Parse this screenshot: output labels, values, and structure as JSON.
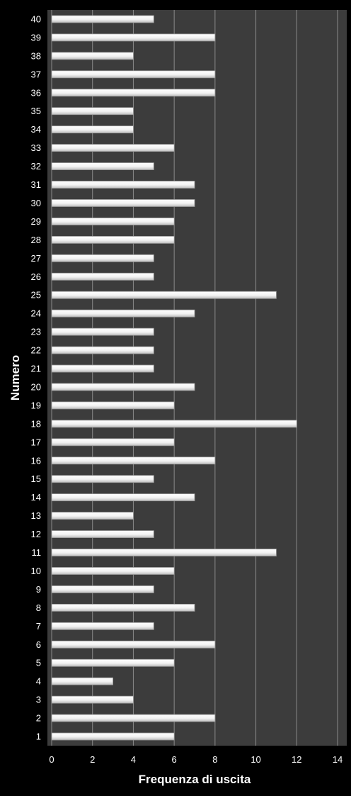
{
  "colors": {
    "background": "#000000",
    "plot_area": "#3c3c3c",
    "gridline": "#8a8a8a",
    "bar_light": "#ffffff",
    "bar_shade": "#bdbdbd",
    "text": "#ffffff"
  },
  "chart_data": {
    "type": "bar",
    "orientation": "horizontal",
    "xlabel": "Frequenza di uscita",
    "ylabel": "Numero",
    "xlim": [
      0,
      14
    ],
    "x_ticks": [
      "0",
      "2",
      "4",
      "6",
      "8",
      "10",
      "12",
      "14"
    ],
    "grid": true,
    "legend": "none",
    "categories": [
      "1",
      "2",
      "3",
      "4",
      "5",
      "6",
      "7",
      "8",
      "9",
      "10",
      "11",
      "12",
      "13",
      "14",
      "15",
      "16",
      "17",
      "18",
      "19",
      "20",
      "21",
      "22",
      "23",
      "24",
      "25",
      "26",
      "27",
      "28",
      "29",
      "30",
      "31",
      "32",
      "33",
      "34",
      "35",
      "36",
      "37",
      "38",
      "39",
      "40"
    ],
    "values": [
      6,
      8,
      4,
      3,
      6,
      8,
      5,
      7,
      5,
      6,
      11,
      5,
      4,
      7,
      5,
      8,
      6,
      12,
      6,
      7,
      5,
      5,
      5,
      7,
      11,
      5,
      5,
      6,
      6,
      7,
      7,
      5,
      6,
      4,
      4,
      8,
      8,
      4,
      8,
      5
    ]
  }
}
